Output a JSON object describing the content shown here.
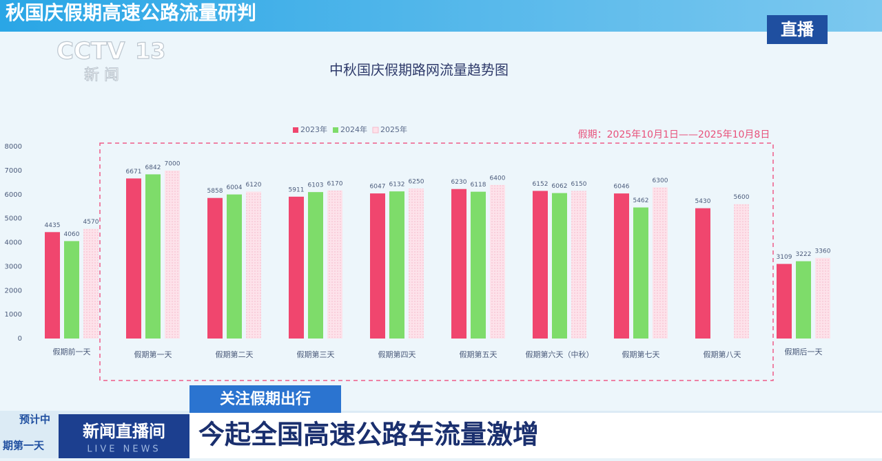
{
  "banner": {
    "title": "秋国庆假期高速公路流量研判",
    "live": "直播"
  },
  "logo": {
    "brand": "CCTV",
    "channel": "13",
    "name": "新 闻"
  },
  "chart_data": {
    "type": "bar",
    "title": "中秋国庆假期路网流量趋势图",
    "annotation": "假期：2025年10月1日——2025年10月8日",
    "categories": [
      "假期前一天",
      "假期第一天",
      "假期第二天",
      "假期第三天",
      "假期第四天",
      "假期第五天",
      "假期第六天（中秋）",
      "假期第七天",
      "假期第八天",
      "假期后一天"
    ],
    "series": [
      {
        "name": "2023年",
        "color": "#f0466e",
        "values": [
          4435,
          6671,
          5858,
          5911,
          6047,
          6230,
          6152,
          6046,
          5430,
          3109
        ]
      },
      {
        "name": "2024年",
        "color": "#7edc6a",
        "values": [
          4060,
          6842,
          6004,
          6103,
          6132,
          6118,
          6062,
          5462,
          null,
          3222
        ]
      },
      {
        "name": "2025年",
        "color": "#fde2ea",
        "values": [
          4570,
          7000,
          6120,
          6170,
          6250,
          6400,
          6150,
          6300,
          5600,
          3360
        ]
      }
    ],
    "ylim": [
      0,
      8000
    ],
    "yticks": [
      0,
      1000,
      2000,
      3000,
      4000,
      5000,
      6000,
      7000,
      8000
    ],
    "legend": "top"
  },
  "lower_third": {
    "tag": "关注假期出行",
    "headline": "今起全国高速公路车流量激增",
    "program": "新闻直播间",
    "program_en": "LIVE NEWS",
    "side_top": "预计中",
    "side_bottom": "期第一天"
  }
}
